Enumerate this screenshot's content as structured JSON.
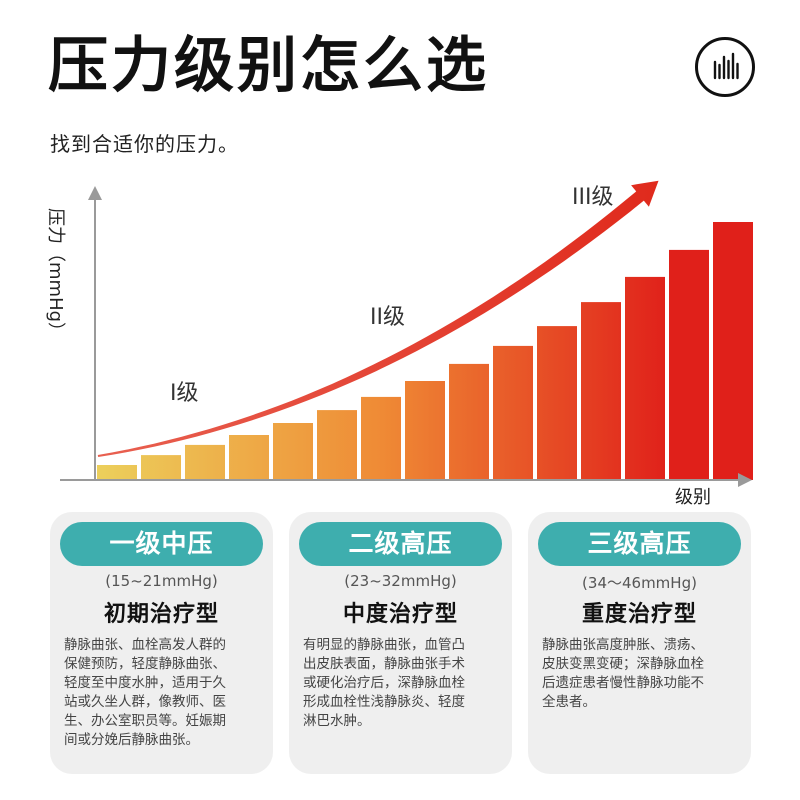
{
  "header": {
    "title": "压力级别怎么选",
    "subtitle": "找到合适你的压力。",
    "logo_icon": "sound-wave-icon"
  },
  "chart_data": {
    "type": "bar",
    "title": "",
    "xlabel": "级别",
    "ylabel": "压力（mmHg）",
    "bar_heights_relative": [
      0.05,
      0.083,
      0.117,
      0.15,
      0.19,
      0.233,
      0.277,
      0.33,
      0.387,
      0.447,
      0.513,
      0.593,
      0.677,
      0.767,
      0.86
    ],
    "ylim": [
      0,
      1
    ],
    "grid": false,
    "trend_arrow": true,
    "annotations": [
      "I级",
      "II级",
      "III级"
    ],
    "colors": {
      "low": "#ecd05c",
      "mid": "#ef8a35",
      "high": "#e0201a",
      "arrow": "#e03020"
    }
  },
  "cards": [
    {
      "level": "一级中压",
      "range": "(15~21mmHg)",
      "type": "初期治疗型",
      "desc_lines": [
        "静脉曲张、血栓高发人群的",
        "保健预防，轻度静脉曲张、",
        "轻度至中度水肿，适用于久",
        "站或久坐人群，像教师、医",
        "生、办公室职员等。妊娠期",
        "间或分娩后静脉曲张。"
      ]
    },
    {
      "level": "二级高压",
      "range": "(23~32mmHg)",
      "type": "中度治疗型",
      "desc_lines": [
        "有明显的静脉曲张，血管凸",
        "出皮肤表面，静脉曲张手术",
        "或硬化治疗后，深静脉血栓",
        "形成血栓性浅静脉炎、轻度",
        "淋巴水肿。"
      ]
    },
    {
      "level": "三级高压",
      "range": "(34～46mmHg)",
      "type": "重度治疗型",
      "desc_lines": [
        "静脉曲张高度肿胀、溃疡、",
        "皮肤变黑变硬；深静脉血栓",
        "后遗症患者慢性静脉功能不",
        "全患者。"
      ]
    }
  ],
  "theme": {
    "accent": "#3eaeae",
    "card_bg": "#efefef"
  }
}
